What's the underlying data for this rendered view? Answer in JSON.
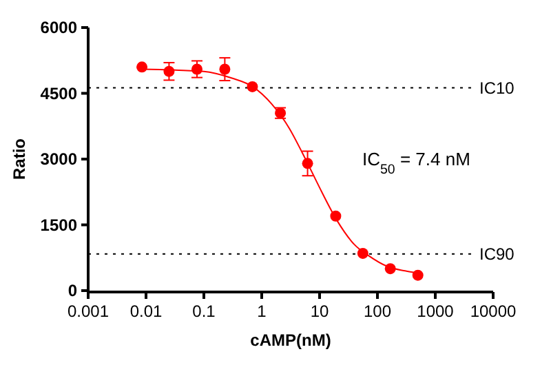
{
  "chart_data": {
    "type": "scatter",
    "xlabel": "cAMP(nM)",
    "ylabel": "Ratio",
    "log": "x",
    "xlim": [
      0.001,
      10000
    ],
    "xticks": [
      0.001,
      0.01,
      0.1,
      1,
      10,
      100,
      1000,
      10000
    ],
    "ylim": [
      0,
      6000
    ],
    "yticks": [
      0,
      1500,
      3000,
      4500,
      6000
    ],
    "marker": "circle",
    "series": [
      {
        "color": "#ff0000",
        "x": [
          0.0085,
          0.025,
          0.076,
          0.23,
          0.69,
          2.1,
          6.2,
          19,
          56,
          167,
          500
        ],
        "values": [
          5100,
          5000,
          5050,
          5050,
          4650,
          4050,
          2900,
          1700,
          850,
          500,
          350
        ],
        "errors": [
          null,
          200,
          190,
          260,
          null,
          120,
          280,
          null,
          null,
          null,
          null
        ]
      },
      {
        "type": "line",
        "color": "#ff0000",
        "marker": "none",
        "x": [
          0.0085,
          0.1,
          0.3,
          0.7,
          1.5,
          3,
          5,
          7.4,
          10,
          20,
          40,
          70,
          150,
          300,
          500
        ],
        "values": [
          5050,
          5000,
          4850,
          4650,
          4250,
          3700,
          3150,
          2700,
          2350,
          1600,
          1050,
          800,
          550,
          450,
          400
        ]
      }
    ],
    "ref_lines": [
      {
        "axis": "y",
        "value": 4625,
        "label": "IC10",
        "line_style": "dotted",
        "color": "#000000"
      },
      {
        "axis": "y",
        "value": 835,
        "label": "IC90",
        "line_style": "dotted",
        "color": "#000000"
      }
    ],
    "annotations": [
      "IC$_{50}$ = 7.4 nM"
    ]
  }
}
